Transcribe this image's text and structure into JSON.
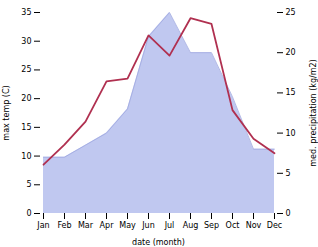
{
  "chart_data": {
    "type": "line",
    "categories": [
      "Jan",
      "Feb",
      "Mar",
      "Apr",
      "May",
      "Jun",
      "Jul",
      "Aug",
      "Sep",
      "Oct",
      "Nov",
      "Dec"
    ],
    "xlabel": "date (month)",
    "ylabel": "max temp (C)",
    "y2label": "med. precipitation (kg/m2)",
    "ylim": [
      0,
      35
    ],
    "yticks": [
      0,
      5,
      10,
      15,
      20,
      25,
      30,
      35
    ],
    "y2lim": [
      0,
      25
    ],
    "y2ticks": [
      0,
      5,
      10,
      15,
      20,
      25
    ],
    "grid": false,
    "series": [
      {
        "type": "area",
        "axis": "y2",
        "color": "#c0c8f0",
        "values": [
          7.0,
          7.0,
          8.5,
          10.0,
          13.0,
          22.0,
          25.0,
          20.0,
          20.0,
          14.5,
          8.0,
          8.0
        ]
      },
      {
        "type": "line",
        "axis": "y2",
        "color": "#a0a8e0",
        "values": [
          7.0,
          7.0,
          8.5,
          10.0,
          13.0,
          22.0,
          25.0,
          20.0,
          20.0,
          14.5,
          8.0,
          8.0
        ]
      },
      {
        "type": "line",
        "color": "#b03050",
        "values": [
          8.5,
          12.0,
          16.0,
          23.0,
          23.5,
          31.0,
          27.5,
          34.0,
          33.0,
          18.0,
          13.0,
          10.5
        ]
      }
    ]
  }
}
